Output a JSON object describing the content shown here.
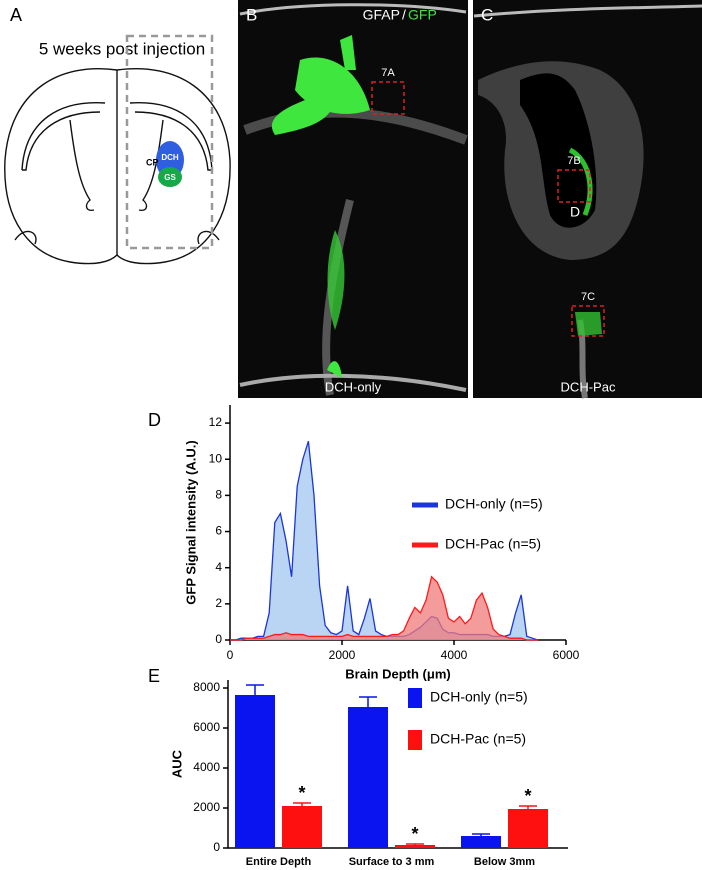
{
  "panels": [
    {
      "label": "A",
      "title": "5 weeks post injection",
      "regions": [
        "CP",
        "DCH",
        "GS"
      ]
    },
    {
      "label": "B",
      "stains": [
        "GFAP",
        "/",
        "GFP"
      ],
      "boxes": [
        "7A"
      ],
      "caption": "DCH-only"
    },
    {
      "label": "C",
      "boxes": [
        "7B",
        "7C"
      ],
      "box_note": "D",
      "caption": "DCH-Pac"
    }
  ],
  "chart_data": [
    {
      "type": "area",
      "label": "D",
      "ylabel": "GFP Signal intensity (A.U.)",
      "xlabel": "Brain Depth (μm)",
      "xlim": [
        0,
        6000
      ],
      "xticks": [
        0,
        2000,
        4000,
        6000
      ],
      "ylim": [
        0,
        13
      ],
      "yticks": [
        0,
        2,
        4,
        6,
        8,
        10,
        12
      ],
      "x": [
        0,
        100,
        200,
        300,
        400,
        500,
        600,
        700,
        800,
        900,
        1000,
        1100,
        1200,
        1300,
        1400,
        1500,
        1600,
        1700,
        1800,
        1900,
        2000,
        2100,
        2200,
        2300,
        2400,
        2500,
        2600,
        2700,
        2800,
        2900,
        3000,
        3100,
        3200,
        3300,
        3400,
        3500,
        3600,
        3700,
        3800,
        3900,
        4000,
        4100,
        4200,
        4300,
        4400,
        4500,
        4600,
        4700,
        4800,
        4900,
        5000,
        5100,
        5200,
        5300,
        5400,
        5500
      ],
      "series": [
        {
          "name": "DCH-only (n=5)",
          "color": "#1a36d8",
          "fill": "#a3c6ef",
          "values": [
            0,
            0,
            0.1,
            0.1,
            0.1,
            0.2,
            0.2,
            1.5,
            6.5,
            7,
            5.5,
            3.5,
            8.5,
            10,
            11,
            8,
            3,
            0.8,
            0.4,
            0.3,
            0.5,
            3,
            0.5,
            0.3,
            1.2,
            2.3,
            0.5,
            0.3,
            0.2,
            0.2,
            0.2,
            0.2,
            0.3,
            0.5,
            0.7,
            1,
            1.3,
            1.2,
            0.6,
            0.4,
            0.4,
            0.3,
            0.3,
            0.3,
            0.3,
            0.3,
            0.3,
            0.2,
            0.2,
            0.2,
            0.3,
            1.5,
            2.5,
            0.2,
            0.1,
            0
          ]
        },
        {
          "name": "DCH-Pac (n=5)",
          "color": "#ff1a1a",
          "fill": "#f07a7a",
          "values": [
            0,
            0,
            0,
            0.1,
            0.1,
            0.1,
            0.1,
            0.2,
            0.3,
            0.3,
            0.4,
            0.3,
            0.3,
            0.3,
            0.2,
            0.2,
            0.2,
            0.2,
            0.2,
            0.2,
            0.2,
            0.3,
            0.2,
            0.2,
            0.2,
            0.2,
            0.2,
            0.2,
            0.2,
            0.3,
            0.3,
            0.5,
            1.2,
            1.8,
            1.5,
            2.2,
            3.5,
            3.2,
            2.5,
            1.2,
            1,
            1.3,
            0.9,
            1.2,
            2.2,
            2.6,
            1.8,
            0.6,
            0.3,
            0.2,
            0.1,
            0.1,
            0.1,
            0,
            0,
            0
          ]
        }
      ]
    },
    {
      "type": "bar",
      "label": "E",
      "ylabel": "AUC",
      "categories": [
        "Entire Depth",
        "Surface to 3 mm",
        "Below 3mm"
      ],
      "ylim": [
        0,
        8400
      ],
      "yticks": [
        0,
        2000,
        4000,
        6000,
        8000
      ],
      "series": [
        {
          "name": "DCH-only (n=5)",
          "color": "#0a14f0",
          "values": [
            7650,
            7050,
            600
          ],
          "errors": [
            500,
            500,
            100
          ]
        },
        {
          "name": "DCH-Pac (n=5)",
          "color": "#ff1010",
          "values": [
            2100,
            150,
            1950
          ],
          "errors": [
            150,
            50,
            150
          ],
          "markers": [
            "*",
            "*",
            "*"
          ]
        }
      ]
    }
  ]
}
